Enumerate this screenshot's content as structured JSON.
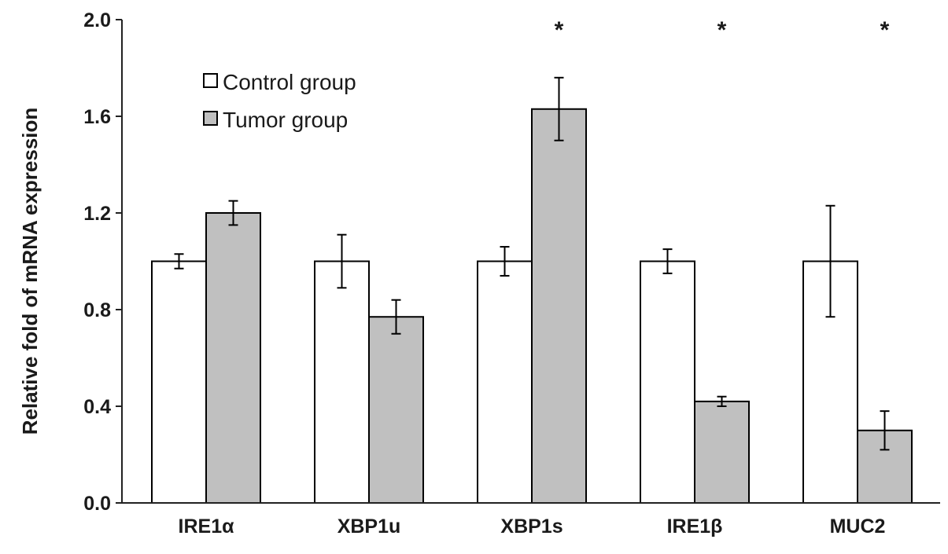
{
  "chart_data": {
    "type": "bar",
    "ylabel": "Relative fold of mRNA expression",
    "xlabel": "",
    "ylim": [
      0,
      2.0
    ],
    "yticks": [
      "0.0",
      "0.4",
      "0.8",
      "1.2",
      "1.6",
      "2.0"
    ],
    "categories": [
      "IRE1α",
      "XBP1u",
      "XBP1s",
      "IRE1β",
      "MUC2"
    ],
    "series": [
      {
        "name": "Control group",
        "color": "#ffffff",
        "values": [
          1.0,
          1.0,
          1.0,
          1.0,
          1.0
        ],
        "errors": [
          0.03,
          0.11,
          0.06,
          0.05,
          0.23
        ]
      },
      {
        "name": "Tumor group",
        "color": "#c0c0c0",
        "values": [
          1.2,
          0.77,
          1.63,
          0.42,
          0.3
        ],
        "errors": [
          0.05,
          0.07,
          0.13,
          0.02,
          0.08
        ]
      }
    ],
    "significance": [
      "",
      "",
      "*",
      "*",
      "*"
    ],
    "legend_position": "top-left",
    "grid": false
  }
}
